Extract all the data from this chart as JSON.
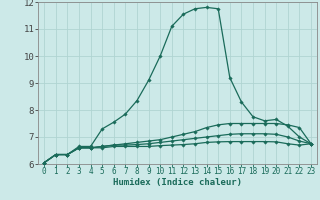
{
  "xlabel": "Humidex (Indice chaleur)",
  "bg_color": "#cce9e8",
  "grid_color": "#b0d4d2",
  "line_color": "#1a6b5a",
  "xlim": [
    -0.5,
    23.5
  ],
  "ylim": [
    6.0,
    12.0
  ],
  "xticks": [
    0,
    1,
    2,
    3,
    4,
    5,
    6,
    7,
    8,
    9,
    10,
    11,
    12,
    13,
    14,
    15,
    16,
    17,
    18,
    19,
    20,
    21,
    22,
    23
  ],
  "yticks": [
    6,
    7,
    8,
    9,
    10,
    11,
    12
  ],
  "series": [
    {
      "x": [
        0,
        1,
        2,
        3,
        4,
        5,
        6,
        7,
        8,
        9,
        10,
        11,
        12,
        13,
        14,
        15,
        16,
        17,
        18,
        19,
        20,
        21,
        22,
        23
      ],
      "y": [
        6.05,
        6.35,
        6.35,
        6.65,
        6.65,
        7.3,
        7.55,
        7.85,
        8.35,
        9.1,
        10.0,
        11.1,
        11.55,
        11.75,
        11.8,
        11.75,
        9.2,
        8.3,
        7.75,
        7.6,
        7.65,
        7.4,
        7.0,
        6.75
      ]
    },
    {
      "x": [
        0,
        1,
        2,
        3,
        4,
        5,
        6,
        7,
        8,
        9,
        10,
        11,
        12,
        13,
        14,
        15,
        16,
        17,
        18,
        19,
        20,
        21,
        22,
        23
      ],
      "y": [
        6.05,
        6.35,
        6.35,
        6.6,
        6.6,
        6.65,
        6.7,
        6.75,
        6.8,
        6.85,
        6.9,
        7.0,
        7.1,
        7.2,
        7.35,
        7.45,
        7.5,
        7.5,
        7.5,
        7.5,
        7.5,
        7.45,
        7.35,
        6.75
      ]
    },
    {
      "x": [
        0,
        1,
        2,
        3,
        4,
        5,
        6,
        7,
        8,
        9,
        10,
        11,
        12,
        13,
        14,
        15,
        16,
        17,
        18,
        19,
        20,
        21,
        22,
        23
      ],
      "y": [
        6.05,
        6.35,
        6.35,
        6.6,
        6.6,
        6.65,
        6.7,
        6.7,
        6.72,
        6.75,
        6.8,
        6.85,
        6.9,
        6.95,
        7.0,
        7.05,
        7.1,
        7.12,
        7.12,
        7.12,
        7.1,
        7.0,
        6.85,
        6.75
      ]
    },
    {
      "x": [
        0,
        1,
        2,
        3,
        4,
        5,
        6,
        7,
        8,
        9,
        10,
        11,
        12,
        13,
        14,
        15,
        16,
        17,
        18,
        19,
        20,
        21,
        22,
        23
      ],
      "y": [
        6.05,
        6.35,
        6.35,
        6.6,
        6.6,
        6.6,
        6.65,
        6.65,
        6.65,
        6.65,
        6.68,
        6.7,
        6.72,
        6.75,
        6.8,
        6.82,
        6.83,
        6.83,
        6.83,
        6.83,
        6.82,
        6.75,
        6.7,
        6.75
      ]
    }
  ]
}
